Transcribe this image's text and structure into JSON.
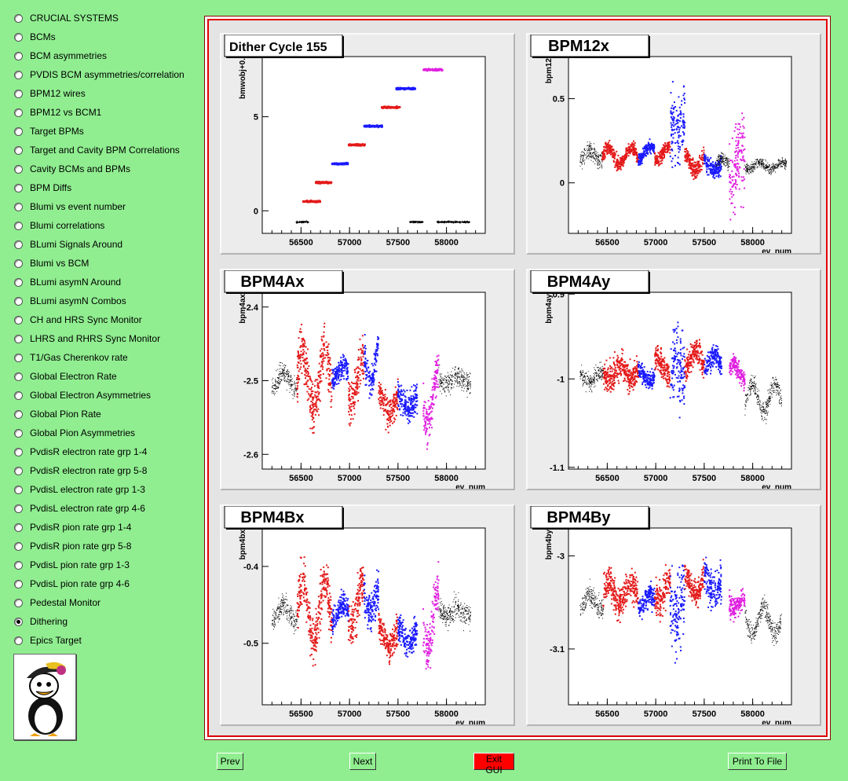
{
  "sidebar": {
    "items": [
      {
        "label": "CRUCIAL SYSTEMS",
        "selected": false
      },
      {
        "label": "BCMs",
        "selected": false
      },
      {
        "label": "BCM asymmetries",
        "selected": false
      },
      {
        "label": "PVDIS BCM asymmetries/correlation",
        "selected": false
      },
      {
        "label": "BPM12 wires",
        "selected": false
      },
      {
        "label": "BPM12 vs BCM1",
        "selected": false
      },
      {
        "label": "Target BPMs",
        "selected": false
      },
      {
        "label": "Target and Cavity BPM Correlations",
        "selected": false
      },
      {
        "label": "Cavity BCMs and BPMs",
        "selected": false
      },
      {
        "label": "BPM Diffs",
        "selected": false
      },
      {
        "label": "Blumi vs event number",
        "selected": false
      },
      {
        "label": "Blumi correlations",
        "selected": false
      },
      {
        "label": "BLumi Signals Around",
        "selected": false
      },
      {
        "label": "Blumi vs BCM",
        "selected": false
      },
      {
        "label": "BLumi asymN Around",
        "selected": false
      },
      {
        "label": "BLumi asymN Combos",
        "selected": false
      },
      {
        "label": "CH and HRS Sync Monitor",
        "selected": false
      },
      {
        "label": "LHRS and RHRS Sync Monitor",
        "selected": false
      },
      {
        "label": "T1/Gas Cherenkov rate",
        "selected": false
      },
      {
        "label": "Global Electron Rate",
        "selected": false
      },
      {
        "label": "Global Electron Asymmetries",
        "selected": false
      },
      {
        "label": "Global Pion Rate",
        "selected": false
      },
      {
        "label": "Global Pion Asymmetries",
        "selected": false
      },
      {
        "label": "PvdisR electron rate grp 1-4",
        "selected": false
      },
      {
        "label": "PvdisR electron rate grp 5-8",
        "selected": false
      },
      {
        "label": "PvdisL electron rate grp 1-3",
        "selected": false
      },
      {
        "label": "PvdisL electron rate grp 4-6",
        "selected": false
      },
      {
        "label": "PvdisR pion rate grp 1-4",
        "selected": false
      },
      {
        "label": "PvdisR pion rate grp 5-8",
        "selected": false
      },
      {
        "label": "PvdisL pion rate grp 1-3",
        "selected": false
      },
      {
        "label": "PvdisL pion rate grp 4-6",
        "selected": false
      },
      {
        "label": "Pedestal Monitor",
        "selected": false
      },
      {
        "label": "Dithering",
        "selected": true
      },
      {
        "label": "Epics Target",
        "selected": false
      }
    ],
    "logo_icon": "penguin-logo-icon"
  },
  "buttons": {
    "prev": "Prev",
    "next": "Next",
    "exit": "Exit GUI",
    "print": "Print To File"
  },
  "colors": {
    "background": "#90ee90",
    "red": "#e41a1a",
    "blue": "#1a1aff",
    "magenta": "#e020e0",
    "black": "#000000",
    "exit_button": "#ff0000"
  },
  "chart_data": [
    {
      "type": "scatter",
      "title": "Dither Cycle  155",
      "ylabel": "bmwobj+0.",
      "xlabel": "",
      "xlim": [
        56100,
        58400
      ],
      "ylim": [
        -1.2,
        8.2
      ],
      "x_ticks": [
        56500,
        57000,
        57500,
        58000
      ],
      "y_ticks": [
        0,
        5
      ],
      "y_tick_labels": [
        "0",
        "5"
      ],
      "segments": [
        {
          "color": "black",
          "x": [
            56450,
            56580
          ],
          "y": -0.6,
          "spread": 0.05
        },
        {
          "color": "red",
          "x": [
            56520,
            56700
          ],
          "y": 0.5,
          "spread": 0.05
        },
        {
          "color": "red",
          "x": [
            56650,
            56820
          ],
          "y": 1.5,
          "spread": 0.05
        },
        {
          "color": "blue",
          "x": [
            56820,
            56990
          ],
          "y": 2.5,
          "spread": 0.05
        },
        {
          "color": "red",
          "x": [
            56990,
            57160
          ],
          "y": 3.5,
          "spread": 0.05
        },
        {
          "color": "blue",
          "x": [
            57150,
            57340
          ],
          "y": 4.5,
          "spread": 0.05
        },
        {
          "color": "red",
          "x": [
            57330,
            57520
          ],
          "y": 5.5,
          "spread": 0.05
        },
        {
          "color": "blue",
          "x": [
            57480,
            57680
          ],
          "y": 6.5,
          "spread": 0.05
        },
        {
          "color": "black",
          "x": [
            57620,
            57760
          ],
          "y": -0.6,
          "spread": 0.05
        },
        {
          "color": "magenta",
          "x": [
            57760,
            57960
          ],
          "y": 7.5,
          "spread": 0.05
        },
        {
          "color": "black",
          "x": [
            57900,
            58240
          ],
          "y": -0.6,
          "spread": 0.05
        }
      ]
    },
    {
      "type": "scatter",
      "title": "BPM12x",
      "ylabel": "bpm12",
      "xlabel": "ev_num",
      "xlim": [
        56100,
        58400
      ],
      "ylim": [
        -0.3,
        0.75
      ],
      "x_ticks": [
        56500,
        57000,
        57500,
        58000
      ],
      "y_ticks": [
        0,
        0.5
      ],
      "y_tick_labels": [
        "0",
        "0.5"
      ],
      "segments": [
        {
          "color": "black",
          "x": [
            56220,
            56450
          ],
          "y": 0.16,
          "spread": 0.05,
          "wave": 0.03
        },
        {
          "color": "red",
          "x": [
            56450,
            56820
          ],
          "y": 0.16,
          "spread": 0.04,
          "wave": 0.05
        },
        {
          "color": "blue",
          "x": [
            56820,
            56990
          ],
          "y": 0.18,
          "spread": 0.04,
          "wave": 0.04
        },
        {
          "color": "red",
          "x": [
            56990,
            57150
          ],
          "y": 0.18,
          "spread": 0.04,
          "wave": 0.04
        },
        {
          "color": "blue",
          "x": [
            57150,
            57300
          ],
          "y": 0.35,
          "spread": 0.2,
          "wave": 0.05
        },
        {
          "color": "red",
          "x": [
            57300,
            57500
          ],
          "y": 0.12,
          "spread": 0.05,
          "wave": 0.05
        },
        {
          "color": "blue",
          "x": [
            57500,
            57680
          ],
          "y": 0.1,
          "spread": 0.06,
          "wave": 0.03
        },
        {
          "color": "black",
          "x": [
            57620,
            57760
          ],
          "y": 0.12,
          "spread": 0.04,
          "wave": 0.02
        },
        {
          "color": "magenta",
          "x": [
            57760,
            57920
          ],
          "y": 0.08,
          "spread": 0.25,
          "wave": 0.1
        },
        {
          "color": "black",
          "x": [
            57920,
            58350
          ],
          "y": 0.1,
          "spread": 0.03,
          "wave": 0.02
        }
      ]
    },
    {
      "type": "scatter",
      "title": "BPM4Ax",
      "ylabel": "bpm4ax",
      "xlabel": "ev_num",
      "xlim": [
        56100,
        58400
      ],
      "ylim": [
        -2.62,
        -2.38
      ],
      "x_ticks": [
        56500,
        57000,
        57500,
        58000
      ],
      "y_ticks": [
        -2.4,
        -2.5,
        -2.6
      ],
      "y_tick_labels": [
        "-2.4",
        "-2.5",
        "-2.6"
      ],
      "segments": [
        {
          "color": "black",
          "x": [
            56200,
            56460
          ],
          "y": -2.5,
          "spread": 0.015,
          "wave": 0.01
        },
        {
          "color": "red",
          "x": [
            56460,
            56820
          ],
          "y": -2.5,
          "spread": 0.035,
          "wave": 0.04
        },
        {
          "color": "blue",
          "x": [
            56820,
            56990
          ],
          "y": -2.49,
          "spread": 0.015,
          "wave": 0.01
        },
        {
          "color": "red",
          "x": [
            56990,
            57150
          ],
          "y": -2.5,
          "spread": 0.03,
          "wave": 0.03
        },
        {
          "color": "blue",
          "x": [
            57150,
            57300
          ],
          "y": -2.47,
          "spread": 0.025,
          "wave": 0.03
        },
        {
          "color": "red",
          "x": [
            57300,
            57500
          ],
          "y": -2.53,
          "spread": 0.02,
          "wave": 0.015
        },
        {
          "color": "blue",
          "x": [
            57500,
            57700
          ],
          "y": -2.53,
          "spread": 0.02,
          "wave": 0.01
        },
        {
          "color": "magenta",
          "x": [
            57760,
            57920
          ],
          "y": -2.52,
          "spread": 0.03,
          "wave": 0.04
        },
        {
          "color": "black",
          "x": [
            57920,
            58250
          ],
          "y": -2.5,
          "spread": 0.015,
          "wave": 0.005
        }
      ]
    },
    {
      "type": "scatter",
      "title": "BPM4Ay",
      "ylabel": "bpm4ay",
      "xlabel": "ev_num",
      "xlim": [
        56100,
        58400
      ],
      "ylim": [
        -1.1,
        0.91
      ],
      "x_ticks": [
        56500,
        57000,
        57500,
        58000
      ],
      "y_ticks": [
        0.9,
        -1,
        -1.1
      ],
      "y_tick_labels": [
        "0.9",
        "-1",
        "-1.1"
      ],
      "y_tick_positions": [
        0.01,
        0.49,
        0.99
      ],
      "segments": [
        {
          "color": "black",
          "x": [
            56220,
            56460
          ],
          "y_frac": 0.48,
          "spread_frac": 0.05,
          "wave": 0.03
        },
        {
          "color": "red",
          "x": [
            56460,
            56820
          ],
          "y_frac": 0.45,
          "spread_frac": 0.08,
          "wave": 0.04
        },
        {
          "color": "blue",
          "x": [
            56820,
            56990
          ],
          "y_frac": 0.47,
          "spread_frac": 0.05,
          "wave": 0.03
        },
        {
          "color": "red",
          "x": [
            56990,
            57150
          ],
          "y_frac": 0.42,
          "spread_frac": 0.08,
          "wave": 0.05
        },
        {
          "color": "blue",
          "x": [
            57150,
            57300
          ],
          "y_frac": 0.45,
          "spread_frac": 0.22,
          "wave": 0.05
        },
        {
          "color": "red",
          "x": [
            57300,
            57500
          ],
          "y_frac": 0.38,
          "spread_frac": 0.07,
          "wave": 0.05
        },
        {
          "color": "blue",
          "x": [
            57500,
            57680
          ],
          "y_frac": 0.4,
          "spread_frac": 0.06,
          "wave": 0.04
        },
        {
          "color": "magenta",
          "x": [
            57760,
            57920
          ],
          "y_frac": 0.45,
          "spread_frac": 0.05,
          "wave": 0.04
        },
        {
          "color": "black",
          "x": [
            57920,
            58300
          ],
          "y_frac": 0.6,
          "spread_frac": 0.06,
          "wave": 0.08
        }
      ]
    },
    {
      "type": "scatter",
      "title": "BPM4Bx",
      "ylabel": "bpm4bx",
      "xlabel": "ev_num",
      "xlim": [
        56100,
        58400
      ],
      "ylim": [
        -0.58,
        -0.35
      ],
      "x_ticks": [
        56500,
        57000,
        57500,
        58000
      ],
      "y_ticks": [
        -0.4,
        -0.5
      ],
      "y_tick_labels": [
        "-0.4",
        "-0.5"
      ],
      "segments": [
        {
          "color": "black",
          "x": [
            56200,
            56460
          ],
          "y": -0.46,
          "spread": 0.015,
          "wave": 0.01
        },
        {
          "color": "red",
          "x": [
            56460,
            56820
          ],
          "y": -0.46,
          "spread": 0.03,
          "wave": 0.04
        },
        {
          "color": "blue",
          "x": [
            56820,
            56990
          ],
          "y": -0.46,
          "spread": 0.015,
          "wave": 0.01
        },
        {
          "color": "red",
          "x": [
            56990,
            57150
          ],
          "y": -0.45,
          "spread": 0.03,
          "wave": 0.03
        },
        {
          "color": "blue",
          "x": [
            57150,
            57300
          ],
          "y": -0.44,
          "spread": 0.025,
          "wave": 0.02
        },
        {
          "color": "red",
          "x": [
            57300,
            57500
          ],
          "y": -0.49,
          "spread": 0.02,
          "wave": 0.015
        },
        {
          "color": "blue",
          "x": [
            57500,
            57700
          ],
          "y": -0.49,
          "spread": 0.02,
          "wave": 0.01
        },
        {
          "color": "magenta",
          "x": [
            57760,
            57920
          ],
          "y": -0.47,
          "spread": 0.03,
          "wave": 0.04
        },
        {
          "color": "black",
          "x": [
            57920,
            58250
          ],
          "y": -0.46,
          "spread": 0.015,
          "wave": 0.005
        }
      ]
    },
    {
      "type": "scatter",
      "title": "BPM4By",
      "ylabel": "bpm4by",
      "xlabel": "ev_num",
      "xlim": [
        56100,
        58400
      ],
      "ylim": [
        -3.16,
        -2.97
      ],
      "x_ticks": [
        56500,
        57000,
        57500,
        58000
      ],
      "y_ticks": [
        -3,
        -3.1
      ],
      "y_tick_labels": [
        "-3",
        "-3.1"
      ],
      "segments": [
        {
          "color": "black",
          "x": [
            56220,
            56460
          ],
          "y": -3.05,
          "spread": 0.012,
          "wave": 0.008
        },
        {
          "color": "red",
          "x": [
            56460,
            56820
          ],
          "y": -3.04,
          "spread": 0.018,
          "wave": 0.01
        },
        {
          "color": "blue",
          "x": [
            56820,
            56990
          ],
          "y": -3.05,
          "spread": 0.012,
          "wave": 0.008
        },
        {
          "color": "red",
          "x": [
            56990,
            57150
          ],
          "y": -3.04,
          "spread": 0.018,
          "wave": 0.01
        },
        {
          "color": "blue",
          "x": [
            57150,
            57300
          ],
          "y": -3.05,
          "spread": 0.045,
          "wave": 0.02
        },
        {
          "color": "red",
          "x": [
            57300,
            57500
          ],
          "y": -3.03,
          "spread": 0.015,
          "wave": 0.01
        },
        {
          "color": "blue",
          "x": [
            57500,
            57680
          ],
          "y": -3.03,
          "spread": 0.02,
          "wave": 0.01
        },
        {
          "color": "magenta",
          "x": [
            57760,
            57920
          ],
          "y": -3.05,
          "spread": 0.012,
          "wave": 0.006
        },
        {
          "color": "black",
          "x": [
            57920,
            58300
          ],
          "y": -3.07,
          "spread": 0.012,
          "wave": 0.015
        }
      ]
    }
  ]
}
